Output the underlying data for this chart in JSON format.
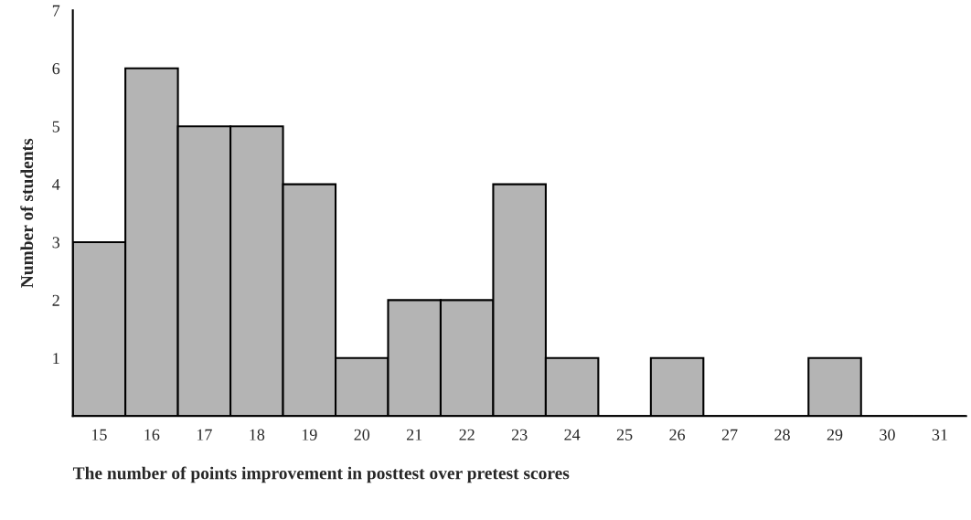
{
  "chart_data": {
    "type": "histogram",
    "xlabel": "The number of points improvement in posttest over pretest scores",
    "ylabel": "Number of students",
    "bins": [
      14.5,
      15.5,
      16.5,
      17.5,
      18.5,
      19.5,
      20.5,
      21.5,
      22.5,
      23.5,
      24.5,
      25.5,
      26.5,
      27.5,
      28.5,
      29.5,
      30.5,
      31.5
    ],
    "values": [
      3,
      6,
      5,
      5,
      4,
      1,
      2,
      2,
      4,
      1,
      0,
      1,
      0,
      0,
      1,
      0,
      0
    ],
    "color": "#b4b4b4",
    "xlim": [
      14.5,
      31.5
    ],
    "xticks": [
      15,
      16,
      17,
      18,
      19,
      20,
      21,
      22,
      23,
      24,
      25,
      26,
      27,
      28,
      29,
      30,
      31
    ],
    "ylim": [
      0,
      7
    ],
    "yticks": [
      1,
      2,
      3,
      4,
      5,
      6,
      7
    ],
    "grid": false,
    "legend": false
  }
}
